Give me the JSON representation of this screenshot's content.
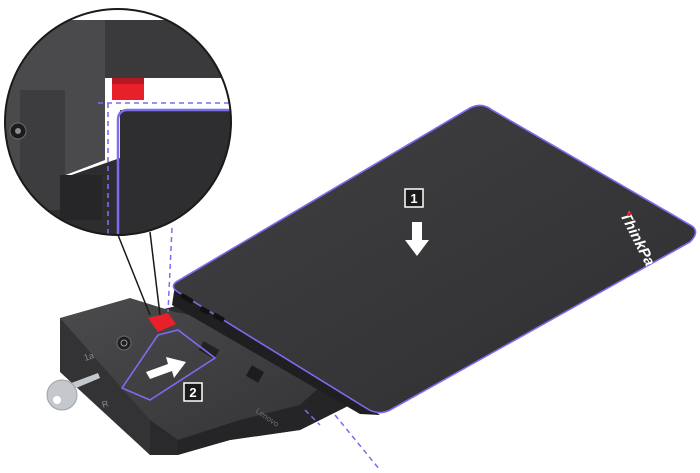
{
  "steps": [
    {
      "number": "1",
      "action": "lower laptop onto dock"
    },
    {
      "number": "2",
      "action": "push dock lever"
    }
  ],
  "laptop": {
    "brand_text": "ThinkPad"
  },
  "dock": {
    "brand_text": "Lenovo",
    "key_label": "1a",
    "lock_labels": [
      "L",
      "R"
    ]
  },
  "colors": {
    "guide_line": "#7b6cf0",
    "highlight_red": "#e8202a",
    "device_dark": "#3b3b3d",
    "device_mid": "#4a4a4c",
    "magnifier_bg": "#4b4b4d"
  },
  "icons": [
    "arrow-down-icon",
    "arrow-push-icon",
    "key-icon",
    "power-button-icon"
  ]
}
